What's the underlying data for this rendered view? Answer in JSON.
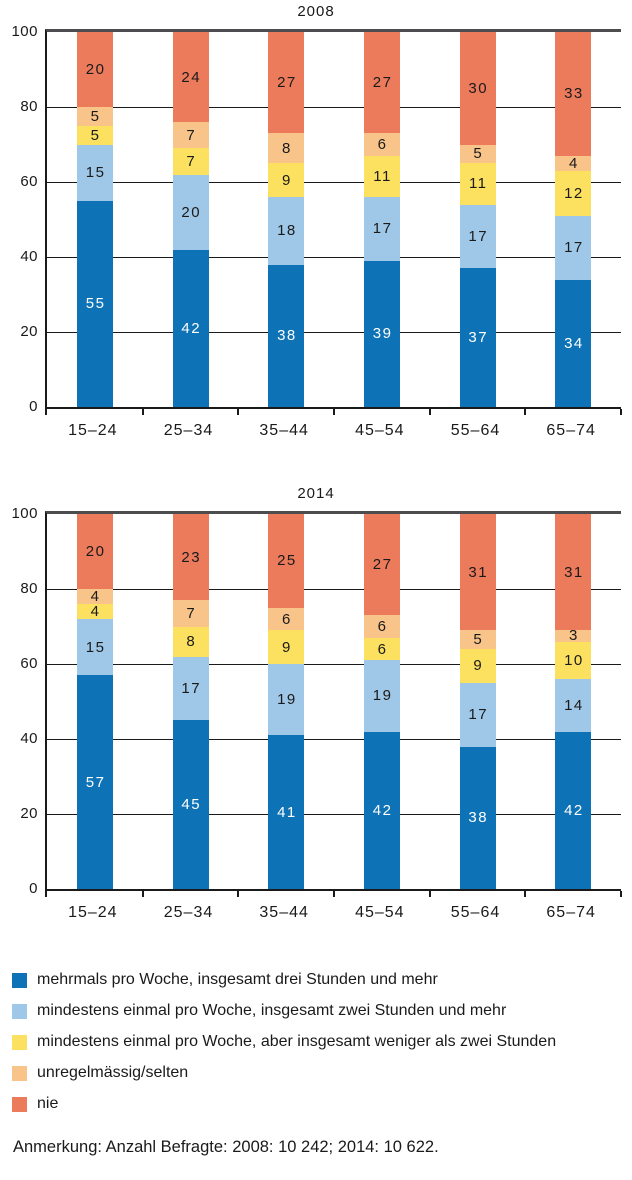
{
  "chart_data": [
    {
      "type": "bar",
      "stacked": true,
      "title": "2008",
      "xlabel": "",
      "ylabel": "",
      "ylim": [
        0,
        100
      ],
      "yticks": [
        0,
        20,
        40,
        60,
        80,
        100
      ],
      "grid": true,
      "categories": [
        "15–24",
        "25–34",
        "35–44",
        "45–54",
        "55–64",
        "65–74"
      ],
      "series": [
        {
          "name": "mehrmals pro Woche, insgesamt drei Stunden und mehr",
          "color": "#0d72b6",
          "label_color": "#ffffff",
          "values": [
            55,
            42,
            38,
            39,
            37,
            34
          ]
        },
        {
          "name": "mindestens einmal pro Woche, insgesamt zwei Stunden und mehr",
          "color": "#9fc8e8",
          "label_color": "#1a1a1a",
          "values": [
            15,
            20,
            18,
            17,
            17,
            17
          ]
        },
        {
          "name": "mindestens einmal pro Woche, aber insgesamt weniger als zwei Stunden",
          "color": "#fbe15f",
          "label_color": "#1a1a1a",
          "values": [
            5,
            7,
            9,
            11,
            11,
            12
          ]
        },
        {
          "name": "unregelmässig/selten",
          "color": "#f8c489",
          "label_color": "#1a1a1a",
          "values": [
            5,
            7,
            8,
            6,
            5,
            4
          ]
        },
        {
          "name": "nie",
          "color": "#ec7b5c",
          "label_color": "#1a1a1a",
          "values": [
            20,
            24,
            27,
            27,
            30,
            33
          ]
        }
      ]
    },
    {
      "type": "bar",
      "stacked": true,
      "title": "2014",
      "xlabel": "",
      "ylabel": "",
      "ylim": [
        0,
        100
      ],
      "yticks": [
        0,
        20,
        40,
        60,
        80,
        100
      ],
      "grid": true,
      "categories": [
        "15–24",
        "25–34",
        "35–44",
        "45–54",
        "55–64",
        "65–74"
      ],
      "series": [
        {
          "name": "mehrmals pro Woche, insgesamt drei Stunden und mehr",
          "color": "#0d72b6",
          "label_color": "#ffffff",
          "values": [
            57,
            45,
            41,
            42,
            38,
            42
          ]
        },
        {
          "name": "mindestens einmal pro Woche, insgesamt zwei Stunden und mehr",
          "color": "#9fc8e8",
          "label_color": "#1a1a1a",
          "values": [
            15,
            17,
            19,
            19,
            17,
            14
          ]
        },
        {
          "name": "mindestens einmal pro Woche, aber insgesamt weniger als zwei Stunden",
          "color": "#fbe15f",
          "label_color": "#1a1a1a",
          "values": [
            4,
            8,
            9,
            6,
            9,
            10
          ]
        },
        {
          "name": "unregelmässig/selten",
          "color": "#f8c489",
          "label_color": "#1a1a1a",
          "values": [
            4,
            7,
            6,
            6,
            5,
            3
          ]
        },
        {
          "name": "nie",
          "color": "#ec7b5c",
          "label_color": "#1a1a1a",
          "values": [
            20,
            23,
            25,
            27,
            31,
            31
          ]
        }
      ]
    }
  ],
  "legend_source": "chart_data.0.series",
  "note": "Anmerkung: Anzahl Befragte: 2008: 10 242; 2014: 10 622.",
  "style": {
    "axis_color": "#1a1a1a",
    "top_rule_color": "#4d4d4f",
    "text_color": "#1a1a1a",
    "background": "#ffffff"
  }
}
